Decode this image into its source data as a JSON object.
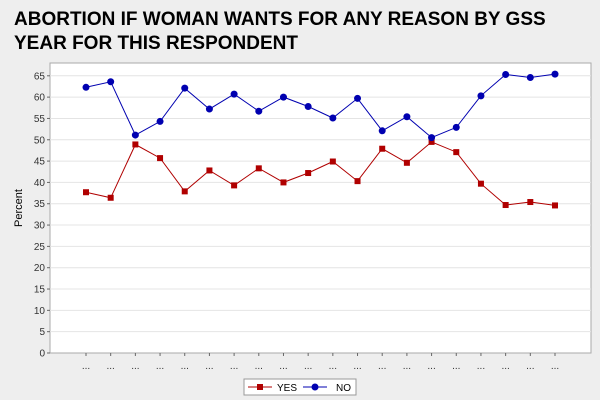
{
  "chart_data": {
    "type": "line",
    "title": "ABORTION IF WOMAN WANTS FOR ANY REASON BY GSS YEAR FOR THIS RESPONDENT",
    "xlabel": "",
    "ylabel": "Percent",
    "ylim": [
      0,
      68
    ],
    "yticks": [
      0,
      5,
      10,
      15,
      20,
      25,
      30,
      35,
      40,
      45,
      50,
      55,
      60,
      65
    ],
    "categories": [
      "...",
      "...",
      "...",
      "...",
      "...",
      "...",
      "...",
      "...",
      "...",
      "...",
      "...",
      "...",
      "...",
      "...",
      "...",
      "...",
      "...",
      "...",
      "...",
      "..."
    ],
    "grid": true,
    "legend_position": "bottom",
    "series": [
      {
        "name": "YES",
        "color": "#b00000",
        "marker": "square",
        "values": [
          37.7,
          36.4,
          48.9,
          45.7,
          37.9,
          42.8,
          39.3,
          43.3,
          40.0,
          42.2,
          44.9,
          40.3,
          47.9,
          44.6,
          49.5,
          47.1,
          39.7,
          34.7,
          35.4,
          34.6
        ]
      },
      {
        "name": "NO",
        "color": "#0000b0",
        "marker": "circle",
        "values": [
          62.3,
          63.6,
          51.1,
          54.3,
          62.1,
          57.2,
          60.7,
          56.7,
          60.0,
          57.8,
          55.1,
          59.7,
          52.1,
          55.4,
          50.5,
          52.9,
          60.3,
          65.3,
          64.6,
          65.4
        ]
      }
    ]
  }
}
